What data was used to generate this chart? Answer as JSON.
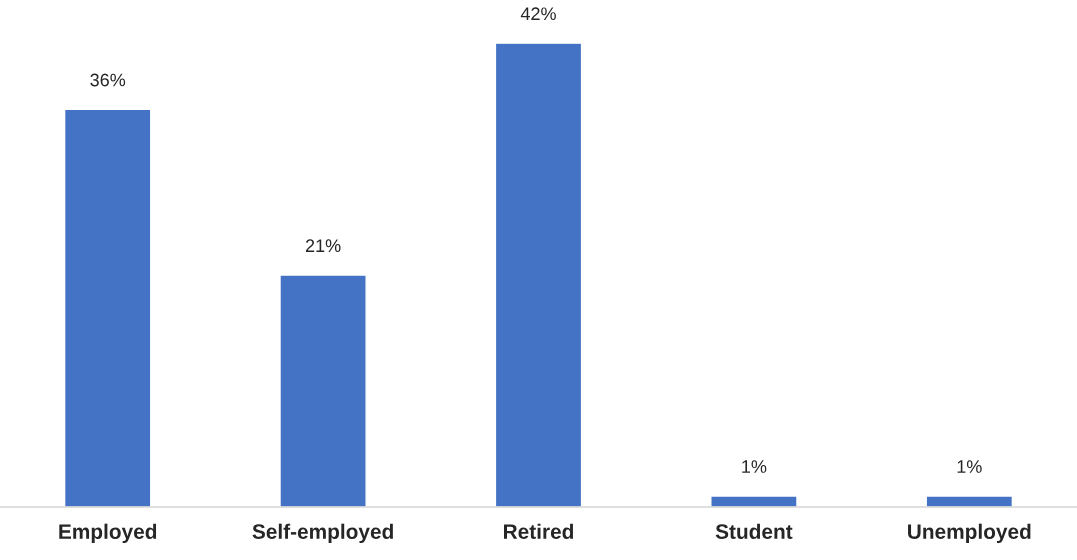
{
  "chart_data": {
    "type": "bar",
    "categories": [
      "Employed",
      "Self-employed",
      "Retired",
      "Student",
      "Unemployed"
    ],
    "values": [
      36,
      21,
      42,
      1,
      1
    ],
    "value_labels": [
      "36%",
      "21%",
      "42%",
      "1%",
      "1%"
    ],
    "color": "#4472c4",
    "grid": false,
    "legend": false
  }
}
